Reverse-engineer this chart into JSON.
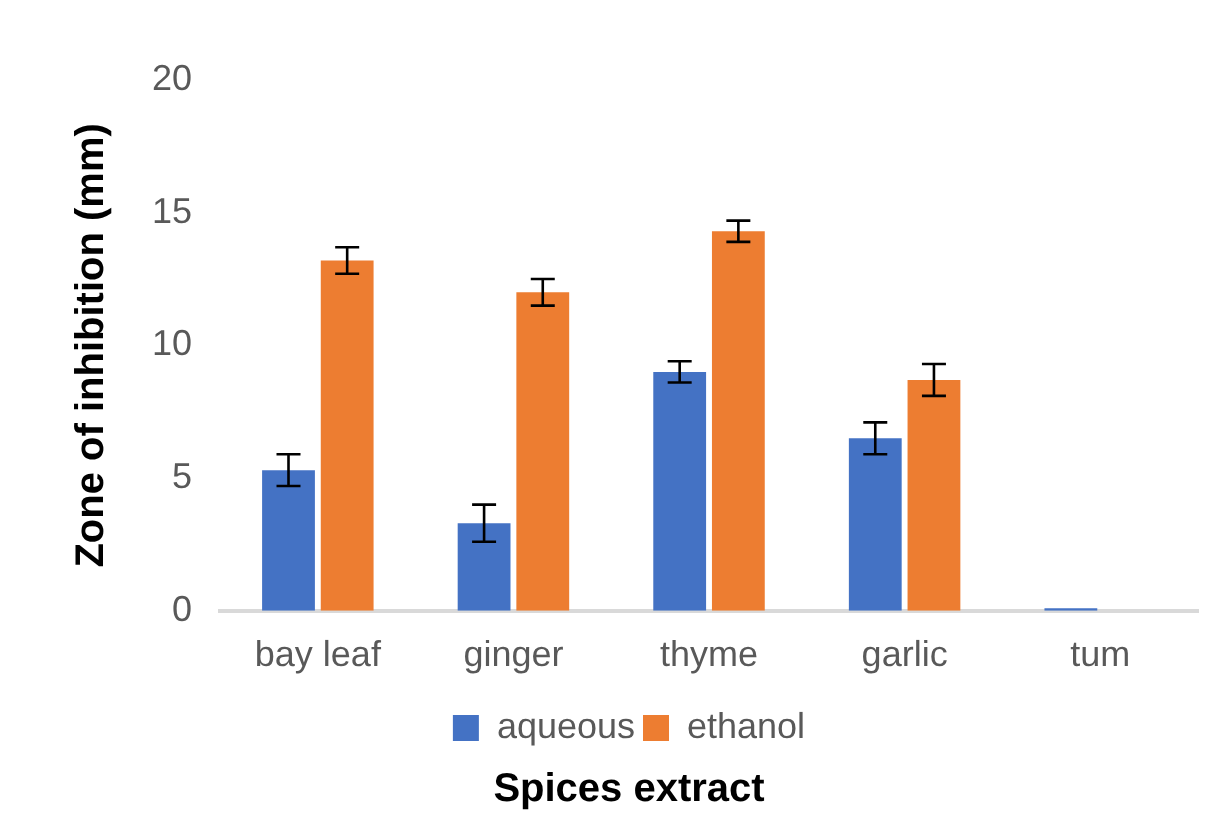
{
  "chart_data": {
    "type": "bar",
    "xlabel": "Spices extract",
    "ylabel": "Zone of inhibition (mm)",
    "categories": [
      "bay leaf",
      "ginger",
      "thyme",
      "garlic",
      "tum"
    ],
    "series": [
      {
        "name": "aqueous",
        "color": "#4472c4",
        "values": [
          5.3,
          3.3,
          9.0,
          6.5,
          0.1
        ],
        "errors": [
          0.6,
          0.7,
          0.4,
          0.6,
          null
        ]
      },
      {
        "name": "ethanol",
        "color": "#ed7d31",
        "values": [
          13.2,
          12.0,
          14.3,
          8.7,
          null
        ],
        "errors": [
          0.5,
          0.5,
          0.4,
          0.6,
          null
        ]
      }
    ],
    "ylim": [
      0,
      20
    ],
    "yticks": [
      0,
      5,
      10,
      15,
      20
    ],
    "grid": false,
    "legend": "bottom"
  }
}
